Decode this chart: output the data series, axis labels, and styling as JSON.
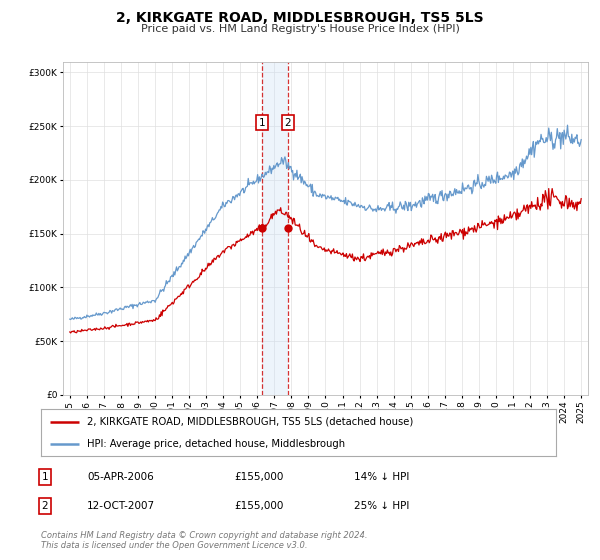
{
  "title": "2, KIRKGATE ROAD, MIDDLESBROUGH, TS5 5LS",
  "subtitle": "Price paid vs. HM Land Registry's House Price Index (HPI)",
  "legend_label_red": "2, KIRKGATE ROAD, MIDDLESBROUGH, TS5 5LS (detached house)",
  "legend_label_blue": "HPI: Average price, detached house, Middlesbrough",
  "transaction1_date": "05-APR-2006",
  "transaction1_price": "£155,000",
  "transaction1_hpi": "14% ↓ HPI",
  "transaction2_date": "12-OCT-2007",
  "transaction2_price": "£155,000",
  "transaction2_hpi": "25% ↓ HPI",
  "transaction1_x": 2006.27,
  "transaction2_x": 2007.79,
  "footer": "Contains HM Land Registry data © Crown copyright and database right 2024.\nThis data is licensed under the Open Government Licence v3.0.",
  "color_red": "#cc0000",
  "color_blue": "#6699cc",
  "color_shade": "#cce0f5",
  "ylim": [
    0,
    310000
  ],
  "yticks": [
    0,
    50000,
    100000,
    150000,
    200000,
    250000,
    300000
  ]
}
